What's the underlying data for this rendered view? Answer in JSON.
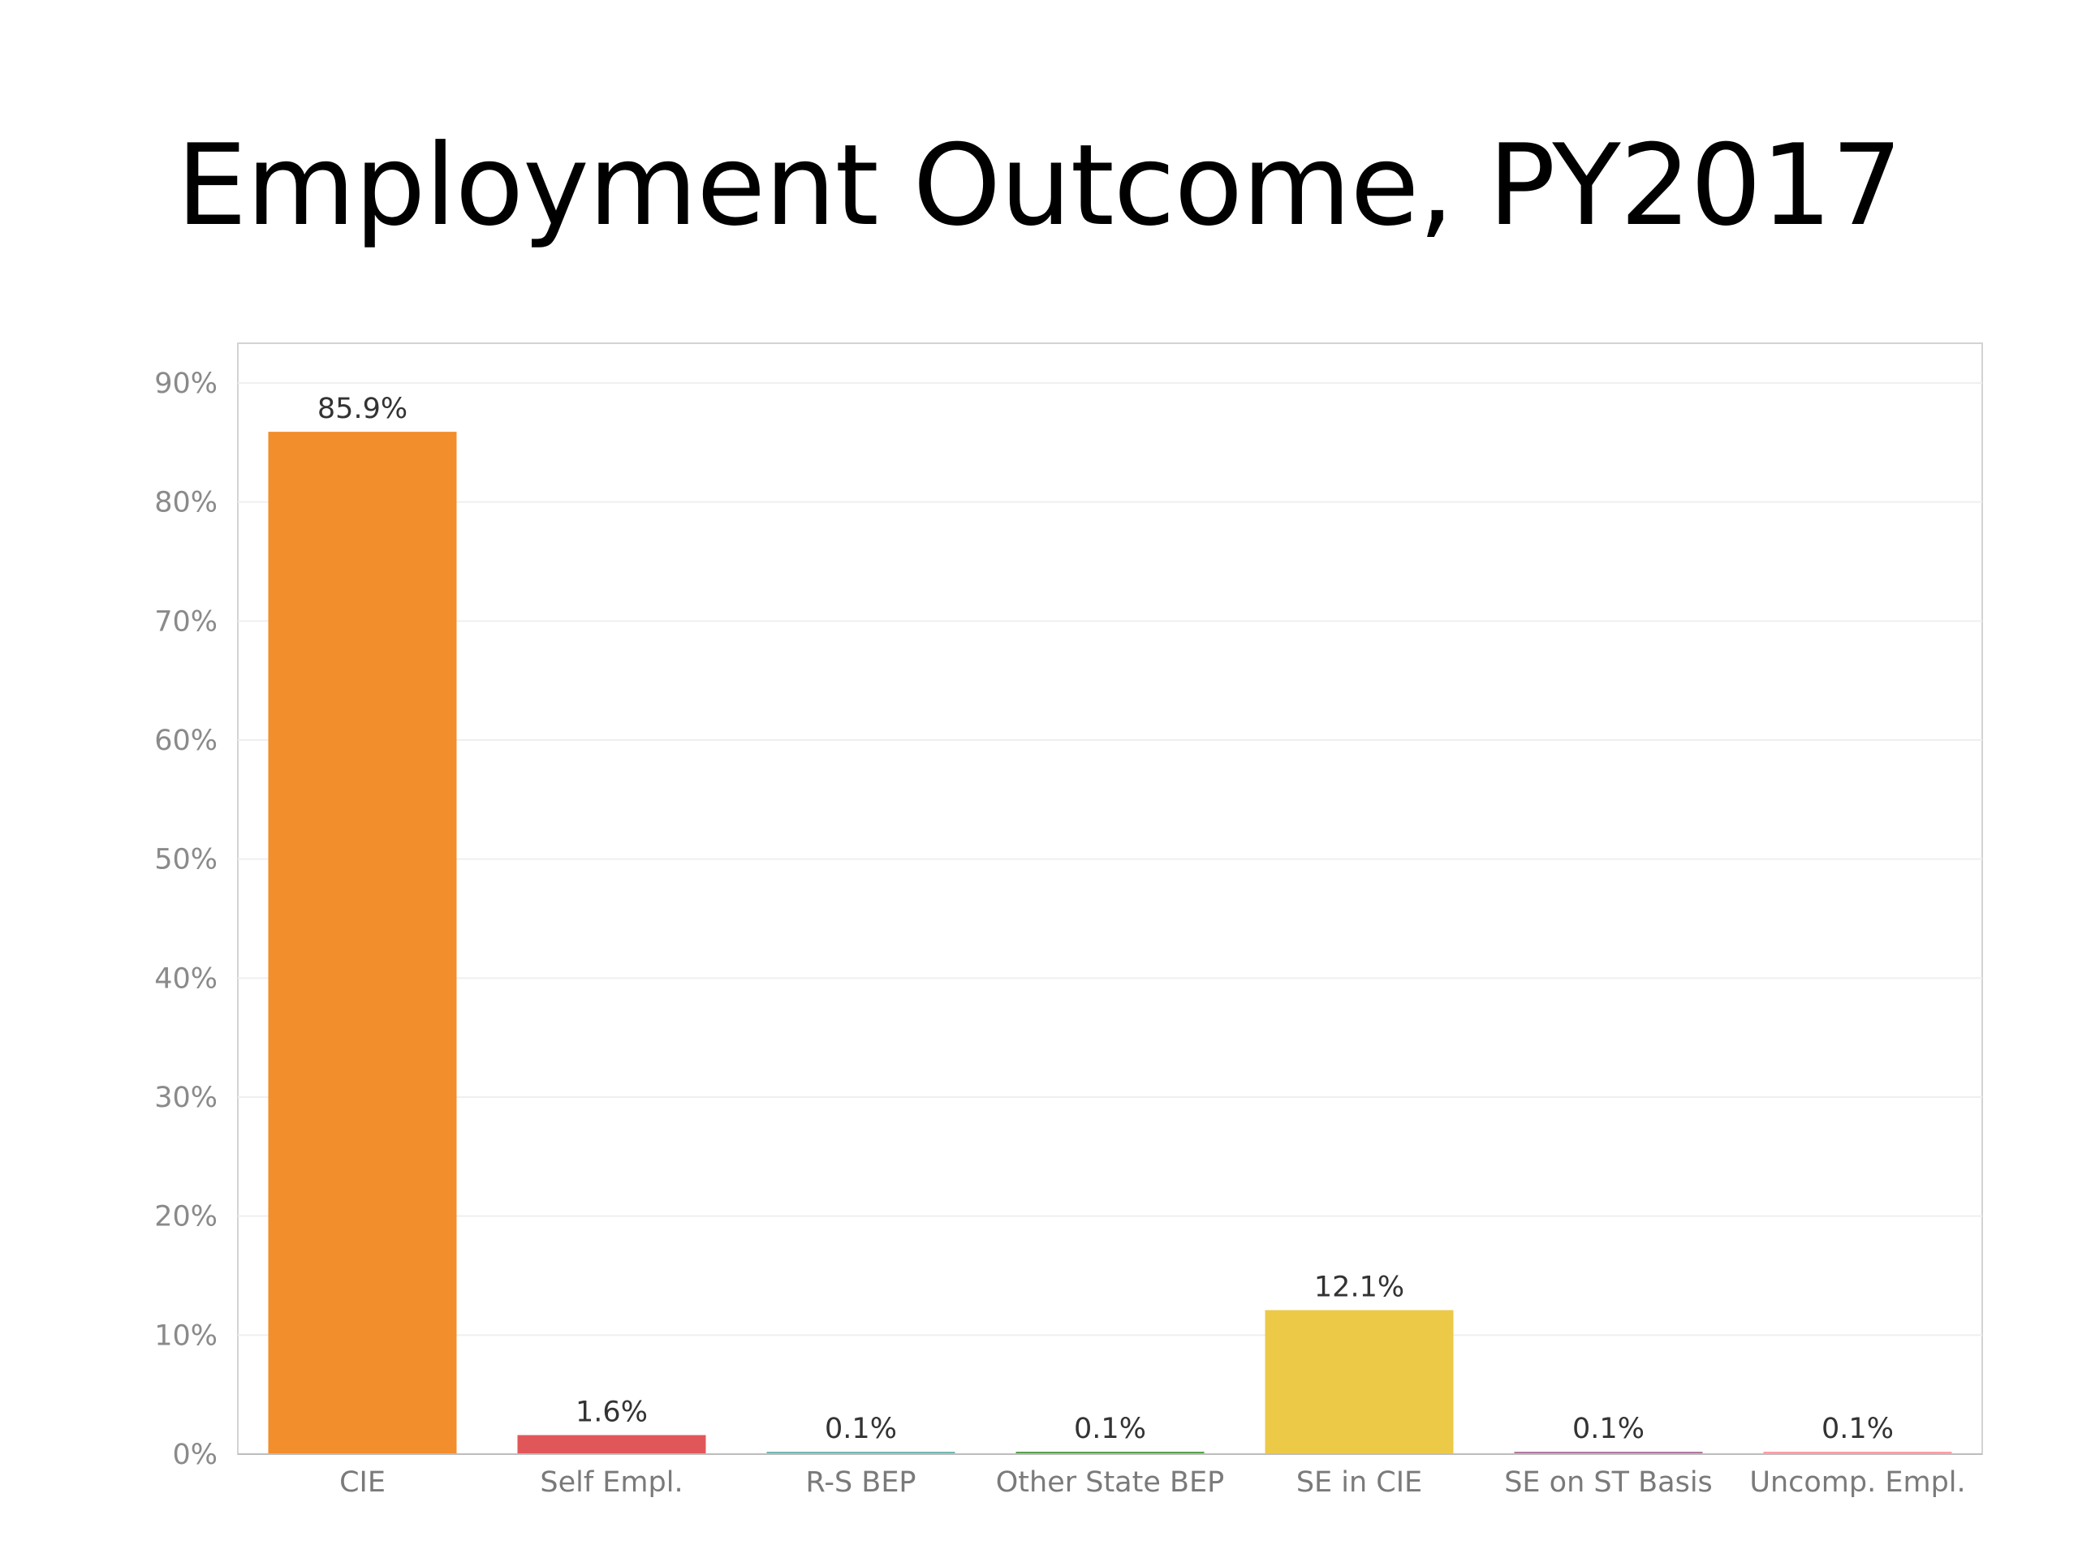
{
  "slide": {
    "title": "Employment Outcome, PY2017"
  },
  "chart_data": {
    "type": "bar",
    "title": "Employment Outcome, PY2017",
    "xlabel": "",
    "ylabel": "",
    "ylim": [
      0,
      0.9
    ],
    "yticks": [
      0,
      0.1,
      0.2,
      0.3,
      0.4,
      0.5,
      0.6,
      0.7,
      0.8,
      0.9
    ],
    "ytick_labels": [
      "0%",
      "10%",
      "20%",
      "30%",
      "40%",
      "50%",
      "60%",
      "70%",
      "80%",
      "90%"
    ],
    "grid": true,
    "categories": [
      "CIE",
      "Self Empl.",
      "R-S BEP",
      "Other State BEP",
      "SE in CIE",
      "SE on ST Basis",
      "Uncomp. Empl."
    ],
    "values": [
      0.859,
      0.016,
      0.001,
      0.001,
      0.121,
      0.001,
      0.001
    ],
    "data_labels": [
      "85.9%",
      "1.6%",
      "0.1%",
      "0.1%",
      "12.1%",
      "0.1%",
      "0.1%"
    ],
    "colors": [
      "#f28e2b",
      "#e15759",
      "#76b7b2",
      "#59a14f",
      "#edc948",
      "#b07aa1",
      "#ff9da7"
    ]
  }
}
